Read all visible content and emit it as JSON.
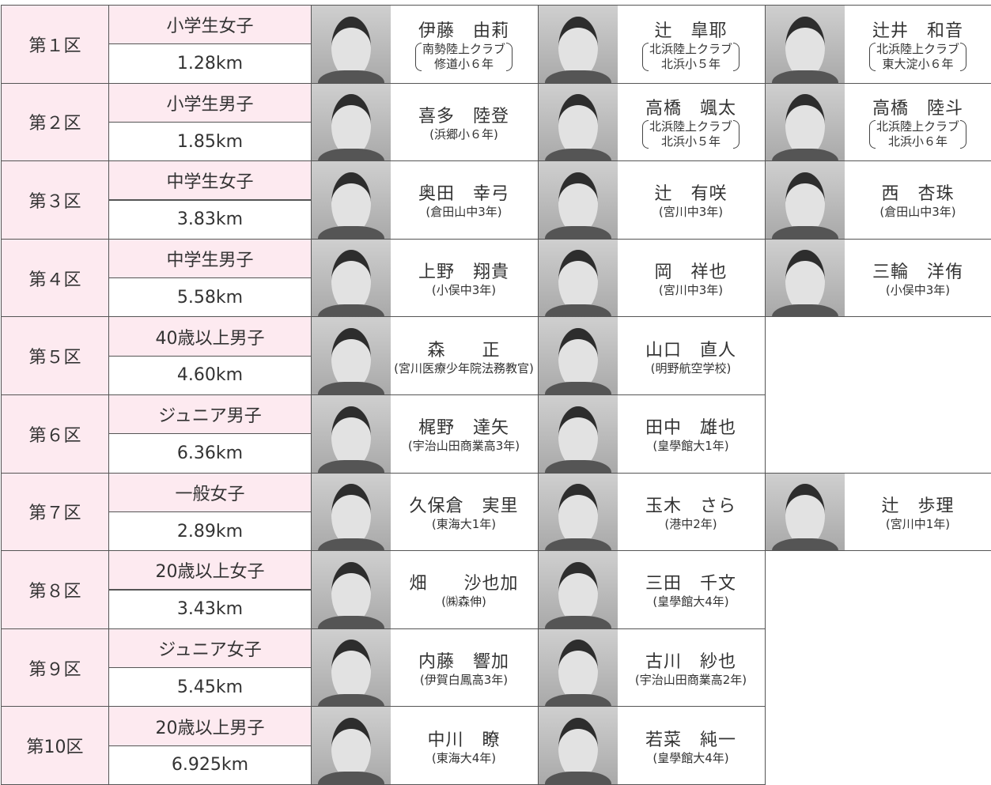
{
  "sections": [
    {
      "label": "第１区",
      "category": "小学生女子",
      "distance": "1.28km",
      "runners": [
        {
          "name": "伊藤　由莉",
          "affiliation": [
            "南勢陸上クラブ",
            "修道小６年"
          ]
        },
        {
          "name": "辻　皐耶",
          "affiliation": [
            "北浜陸上クラブ",
            "北浜小５年"
          ]
        },
        {
          "name": "辻井　和音",
          "affiliation": [
            "北浜陸上クラブ",
            "東大淀小６年"
          ]
        }
      ]
    },
    {
      "label": "第２区",
      "category": "小学生男子",
      "distance": "1.85km",
      "runners": [
        {
          "name": "喜多　陸登",
          "affiliation": [
            "(浜郷小６年)"
          ]
        },
        {
          "name": "高橋　颯太",
          "affiliation": [
            "北浜陸上クラブ",
            "北浜小５年"
          ]
        },
        {
          "name": "高橋　陸斗",
          "affiliation": [
            "北浜陸上クラブ",
            "北浜小６年"
          ]
        }
      ]
    },
    {
      "label": "第３区",
      "category": "中学生女子",
      "distance": "3.83km",
      "runners": [
        {
          "name": "奥田　幸弓",
          "affiliation": [
            "(倉田山中3年)"
          ]
        },
        {
          "name": "辻　有咲",
          "affiliation": [
            "(宮川中3年)"
          ]
        },
        {
          "name": "西　杏珠",
          "affiliation": [
            "(倉田山中3年)"
          ]
        }
      ]
    },
    {
      "label": "第４区",
      "category": "中学生男子",
      "distance": "5.58km",
      "runners": [
        {
          "name": "上野　翔貴",
          "affiliation": [
            "(小俣中3年)"
          ]
        },
        {
          "name": "岡　祥也",
          "affiliation": [
            "(宮川中3年)"
          ]
        },
        {
          "name": "三輪　洋侑",
          "affiliation": [
            "(小俣中3年)"
          ]
        }
      ]
    },
    {
      "label": "第５区",
      "category": "40歳以上男子",
      "distance": "4.60km",
      "runners": [
        {
          "name": "森　　正",
          "affiliation": [
            "(宮川医療少年院法務教官)"
          ]
        },
        {
          "name": "山口　直人",
          "affiliation": [
            "(明野航空学校)"
          ]
        }
      ]
    },
    {
      "label": "第６区",
      "category": "ジュニア男子",
      "distance": "6.36km",
      "runners": [
        {
          "name": "梶野　達矢",
          "affiliation": [
            "(宇治山田商業高3年)"
          ]
        },
        {
          "name": "田中　雄也",
          "affiliation": [
            "(皇學館大1年)"
          ]
        }
      ]
    },
    {
      "label": "第７区",
      "category": "一般女子",
      "distance": "2.89km",
      "runners": [
        {
          "name": "久保倉　実里",
          "affiliation": [
            "(東海大1年)"
          ]
        },
        {
          "name": "玉木　さら",
          "affiliation": [
            "(港中2年)"
          ]
        },
        {
          "name": "辻　歩理",
          "affiliation": [
            "(宮川中1年)"
          ]
        }
      ]
    },
    {
      "label": "第８区",
      "category": "20歳以上女子",
      "distance": "3.43km",
      "runners": [
        {
          "name": "畑　　沙也加",
          "affiliation": [
            "(㈱森伸)"
          ]
        },
        {
          "name": "三田　千文",
          "affiliation": [
            "(皇學館大4年)"
          ]
        }
      ]
    },
    {
      "label": "第９区",
      "category": "ジュニア女子",
      "distance": "5.45km",
      "runners": [
        {
          "name": "内藤　響加",
          "affiliation": [
            "(伊賀白鳳高3年)"
          ]
        },
        {
          "name": "古川　紗也",
          "affiliation": [
            "(宇治山田商業高2年)"
          ]
        }
      ]
    },
    {
      "label": "第10区",
      "category": "20歳以上男子",
      "distance": "6.925km",
      "runners": [
        {
          "name": "中川　瞭",
          "affiliation": [
            "(東海大4年)"
          ]
        },
        {
          "name": "若菜　純一",
          "affiliation": [
            "(皇學館大4年)"
          ]
        }
      ]
    }
  ]
}
